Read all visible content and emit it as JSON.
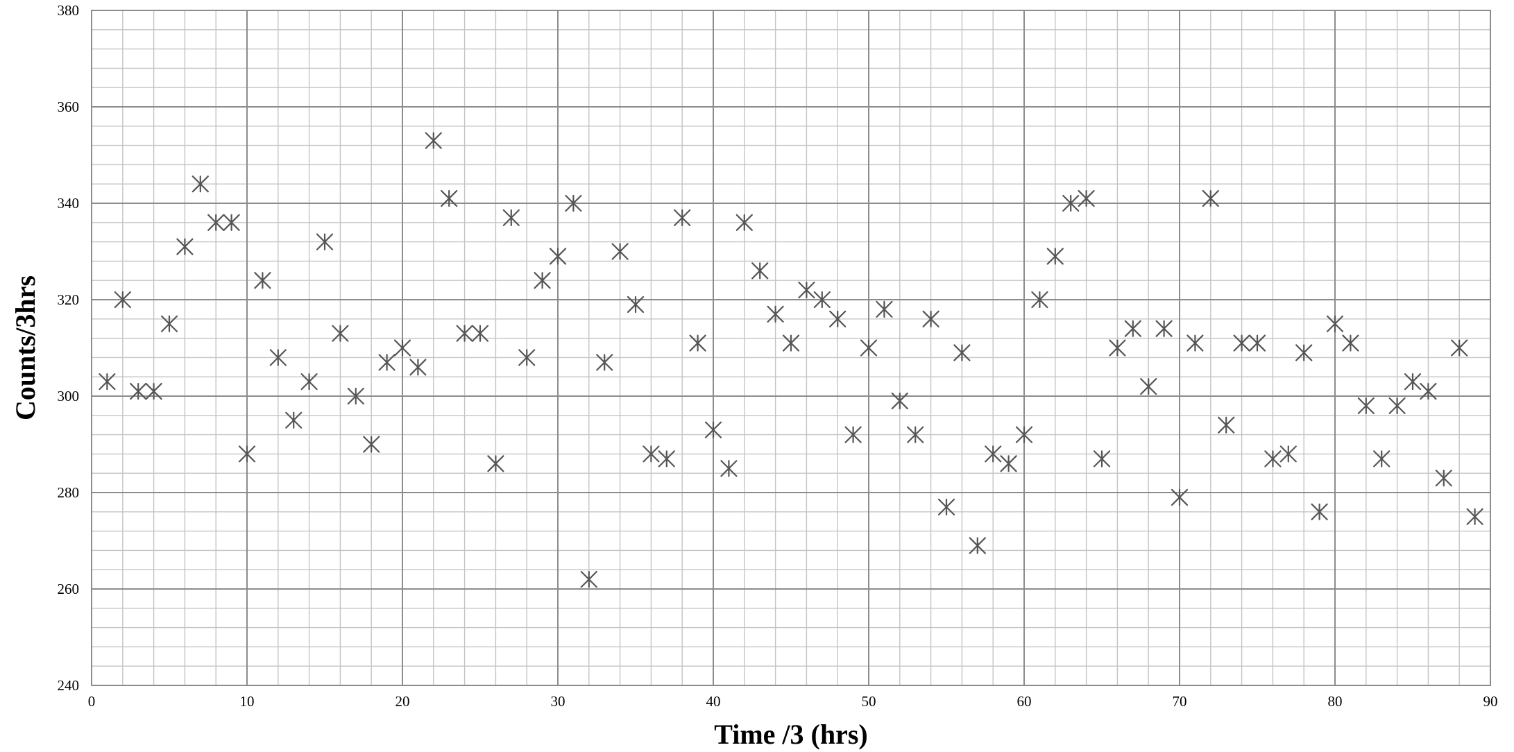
{
  "chart_data": {
    "type": "scatter",
    "title": "",
    "xlabel": "Time /3 (hrs)",
    "ylabel": "Counts/3hrs",
    "xlim": [
      0,
      90
    ],
    "ylim": [
      240,
      380
    ],
    "x_ticks": [
      "0",
      "10",
      "20",
      "30",
      "40",
      "50",
      "60",
      "70",
      "80",
      "90"
    ],
    "y_ticks": [
      "240",
      "260",
      "280",
      "300",
      "320",
      "340",
      "360",
      "380"
    ],
    "x_minor_step": 2,
    "y_minor_step": 4,
    "grid": true,
    "legend": "none",
    "marker": "asterisk",
    "marker_color": "#555555",
    "series": [
      {
        "x": [
          1,
          2,
          3,
          4,
          5,
          6,
          7,
          8,
          9,
          10,
          11,
          12,
          13,
          14,
          15,
          16,
          17,
          18,
          19,
          20,
          21,
          22,
          23,
          24,
          25,
          26,
          27,
          28,
          29,
          30,
          31,
          32,
          33,
          34,
          35,
          36,
          37,
          38,
          39,
          40,
          41,
          42,
          43,
          44,
          45,
          46,
          47,
          48,
          49,
          50,
          51,
          52,
          53,
          54,
          55,
          56,
          57,
          58,
          59,
          60,
          61,
          62,
          63,
          64,
          65,
          66,
          67,
          68,
          69,
          70,
          71,
          72,
          73,
          74,
          75,
          76,
          77,
          78,
          79,
          80,
          81,
          82,
          83,
          84,
          85,
          86,
          87,
          88,
          89
        ],
        "y": [
          303,
          320,
          301,
          301,
          315,
          331,
          344,
          336,
          336,
          288,
          324,
          308,
          295,
          303,
          332,
          313,
          300,
          290,
          307,
          310,
          306,
          353,
          341,
          313,
          313,
          286,
          337,
          308,
          324,
          329,
          340,
          262,
          307,
          330,
          319,
          288,
          287,
          337,
          311,
          293,
          285,
          336,
          326,
          317,
          311,
          322,
          320,
          316,
          292,
          310,
          318,
          299,
          292,
          316,
          277,
          309,
          269,
          288,
          286,
          292,
          320,
          329,
          340,
          341,
          287,
          310,
          314,
          302,
          314,
          279,
          311,
          341,
          294,
          311,
          311,
          287,
          288,
          309,
          276,
          315,
          311,
          298,
          287,
          298,
          303,
          301,
          283,
          310,
          275
        ]
      }
    ]
  }
}
